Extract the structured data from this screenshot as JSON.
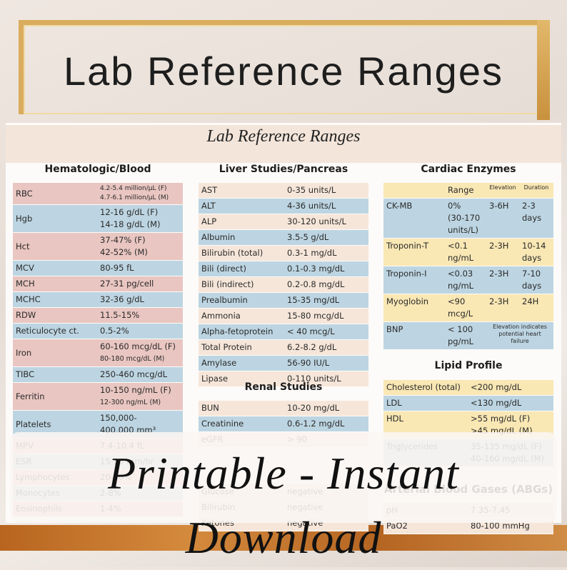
{
  "banner_title": "Lab Reference Ranges",
  "sheet_title": "Lab Reference Ranges",
  "sections": [
    {
      "title": "Hematologic/Blood",
      "rows": [
        [
          [
            "RBC"
          ],
          [
            "4.2-5.4 million/µL (F)",
            "4.7-6.1 million/µL (M)"
          ]
        ],
        [
          [
            "Hgb"
          ],
          [
            "12-16 g/dL (F)",
            "14-18 g/dL (M)"
          ]
        ],
        [
          [
            "Hct"
          ],
          [
            "37-47% (F)",
            "42-52% (M)"
          ]
        ],
        [
          [
            "MCV"
          ],
          [
            "80-95 fL"
          ]
        ],
        [
          [
            "MCH"
          ],
          [
            "27-31 pg/cell"
          ]
        ],
        [
          [
            "MCHC"
          ],
          [
            "32-36 g/dL"
          ]
        ],
        [
          [
            "RDW"
          ],
          [
            "11.5-15%"
          ]
        ],
        [
          [
            "Reticulocyte ct."
          ],
          [
            "0.5-2%"
          ]
        ],
        [
          [
            "Iron"
          ],
          [
            "60-160 mcg/dL (F)",
            "80-180 mcg/dL (M)"
          ]
        ],
        [
          [
            "TIBC"
          ],
          [
            "250-460 mcg/dL"
          ]
        ],
        [
          [
            "Ferritin"
          ],
          [
            "10-150 ng/mL (F)",
            "12-300 ng/mL (M)"
          ]
        ],
        [
          [
            "Platelets"
          ],
          [
            "150,000-",
            "400,000 mm³"
          ]
        ],
        [
          [
            "MPV"
          ],
          [
            "7.4-10.4 fL"
          ]
        ],
        [
          [
            "ESR"
          ],
          [
            "15-20 mm/hr"
          ]
        ],
        [
          [
            "Lymphocytes"
          ],
          [
            "20-40%"
          ]
        ],
        [
          [
            "Monocytes"
          ],
          [
            "2-8%"
          ]
        ],
        [
          [
            "Eosinophils"
          ],
          [
            "1-4%"
          ]
        ]
      ]
    },
    {
      "title": "Liver Studies/Pancreas",
      "rows": [
        [
          [
            "AST"
          ],
          [
            "0-35 units/L"
          ]
        ],
        [
          [
            "ALT"
          ],
          [
            "4-36 units/L"
          ]
        ],
        [
          [
            "ALP"
          ],
          [
            "30-120 units/L"
          ]
        ],
        [
          [
            "Albumin"
          ],
          [
            "3.5-5 g/dL"
          ]
        ],
        [
          [
            "Bilirubin (total)"
          ],
          [
            "0.3-1 mg/dL"
          ]
        ],
        [
          [
            "Bili (direct)"
          ],
          [
            "0.1-0.3 mg/dL"
          ]
        ],
        [
          [
            "Bili (indirect)"
          ],
          [
            "0.2-0.8 mg/dL"
          ]
        ],
        [
          [
            "Prealbumin"
          ],
          [
            "15-35 mg/dL"
          ]
        ],
        [
          [
            "Ammonia"
          ],
          [
            "15-80 mcg/dL"
          ]
        ],
        [
          [
            "Alpha-fetoprotein"
          ],
          [
            "< 40 mcg/L"
          ]
        ],
        [
          [
            "Total Protein"
          ],
          [
            "6.2-8.2 g/dL"
          ]
        ],
        [
          [
            "Amylase"
          ],
          [
            "56-90 IU/L"
          ]
        ],
        [
          [
            "Lipase"
          ],
          [
            "0-110 units/L"
          ]
        ]
      ]
    },
    {
      "title": "Renal Studies",
      "rows": [
        [
          [
            "BUN"
          ],
          [
            "10-20 mg/dL"
          ]
        ],
        [
          [
            "Creatinine"
          ],
          [
            "0.6-1.2 mg/dL"
          ]
        ],
        [
          [
            "eGFR"
          ],
          [
            "> 90"
          ]
        ]
      ]
    },
    {
      "rows": [
        [
          [
            "Glucose"
          ],
          [
            "negative"
          ]
        ],
        [
          [
            "Bilirubin"
          ],
          [
            "negative"
          ]
        ],
        [
          [
            "Ketones"
          ],
          [
            "negative"
          ]
        ]
      ]
    },
    {
      "title": "Cardiac Enzymes",
      "rows": [
        [
          [],
          [
            "Range"
          ],
          [
            "Elevation"
          ],
          [
            "Duration"
          ]
        ],
        [
          [
            "CK-MB"
          ],
          [
            "0%",
            "(30-170",
            "units/L)"
          ],
          [
            "3-6H"
          ],
          [
            "2-3",
            "days"
          ]
        ],
        [
          [
            "Troponin-T"
          ],
          [
            "<0.1",
            "ng/mL"
          ],
          [
            "2-3H"
          ],
          [
            "10-14",
            "days"
          ]
        ],
        [
          [
            "Troponin-I"
          ],
          [
            "<0.03",
            "ng/mL"
          ],
          [
            "2-3H"
          ],
          [
            "7-10",
            "days"
          ]
        ],
        [
          [
            "Myoglobin"
          ],
          [
            "<90",
            "mcg/L"
          ],
          [
            "2-3H"
          ],
          [
            "24H"
          ]
        ],
        [
          [
            "BNP"
          ],
          [
            "< 100",
            "pg/mL"
          ],
          [
            "Elevation indicates potential heart failure"
          ]
        ]
      ]
    },
    {
      "title": "Lipid Profile",
      "rows": [
        [
          [
            "Cholesterol (total)"
          ],
          [
            "<200 mg/dL"
          ]
        ],
        [
          [
            "LDL"
          ],
          [
            "<130 mg/dL"
          ]
        ],
        [
          [
            "HDL"
          ],
          [
            ">55 mg/dL (F)",
            ">45 mg/dL (M)"
          ]
        ],
        [
          [
            "Triglycerides"
          ],
          [
            "35-135 mg/dL (F)",
            "40-160 mg/dL (M)"
          ]
        ]
      ]
    },
    {
      "title": "Arterial Blood Gases (ABGs)",
      "rows": [
        [
          [
            "pH"
          ],
          [
            "7.35-7.45"
          ]
        ],
        [
          [
            "PaO2"
          ],
          [
            "80-100 mmHg"
          ]
        ]
      ]
    }
  ],
  "overlay": "Printable - Instant Download"
}
